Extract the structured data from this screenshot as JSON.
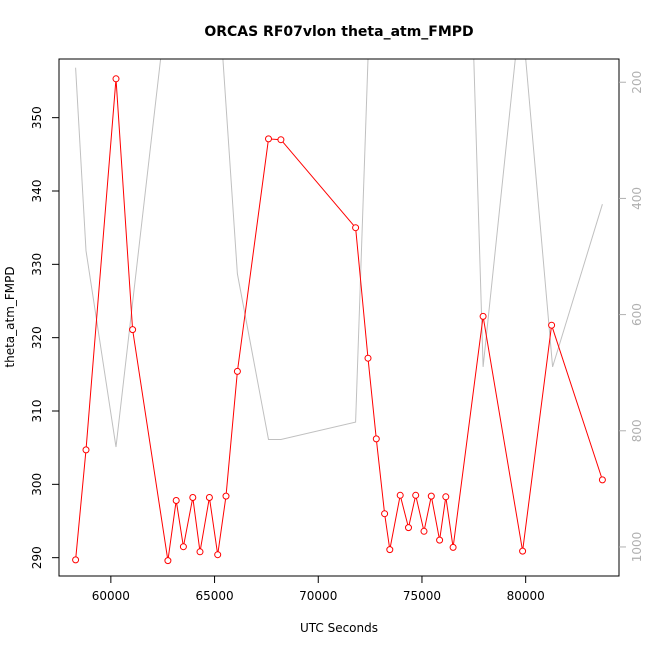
{
  "chart_data": {
    "type": "line",
    "title": "ORCAS RF07vlon theta_atm_FMPD",
    "xlabel": "UTC Seconds",
    "ylabel": "theta_atm_FMPD",
    "xlim": [
      57500,
      84500
    ],
    "ylim": [
      287.5,
      358
    ],
    "y2lim": [
      1050,
      160
    ],
    "xticks": [
      60000,
      65000,
      70000,
      75000,
      80000
    ],
    "yticks": [
      290,
      300,
      310,
      320,
      330,
      340,
      350
    ],
    "y2ticks": [
      200,
      400,
      600,
      800,
      1000
    ],
    "grid": false,
    "series": [
      {
        "axis": "left",
        "color": "#ff0000",
        "markers": true,
        "x": [
          58300,
          58800,
          60250,
          61050,
          62750,
          63150,
          63500,
          63950,
          64300,
          64750,
          65150,
          65550,
          66100,
          67600,
          68200,
          71800,
          72400,
          72800,
          73200,
          73450,
          73950,
          74350,
          74700,
          75100,
          75450,
          75850,
          76150,
          76500,
          77950,
          79850,
          81250,
          83700
        ],
        "y": [
          289.7,
          304.7,
          355.3,
          321.1,
          289.6,
          297.8,
          291.5,
          298.2,
          290.8,
          298.2,
          290.4,
          298.4,
          315.4,
          347.1,
          347.0,
          335.0,
          317.2,
          306.2,
          296.0,
          291.1,
          298.5,
          294.1,
          298.5,
          293.6,
          298.4,
          292.4,
          298.3,
          291.4,
          322.9,
          290.9,
          321.7,
          300.6
        ]
      },
      {
        "axis": "right",
        "color": "#c0c0c0",
        "markers": false,
        "x": [
          58300,
          58800,
          60250,
          62400,
          62900,
          65400,
          66100,
          67600,
          68200,
          71800,
          72400,
          77500,
          77950,
          79500,
          80000,
          81300,
          83700
        ],
        "y": [
          175,
          490,
          828,
          160,
          160,
          160,
          530,
          815,
          815,
          785,
          160,
          160,
          690,
          160,
          160,
          690,
          410
        ]
      }
    ]
  }
}
